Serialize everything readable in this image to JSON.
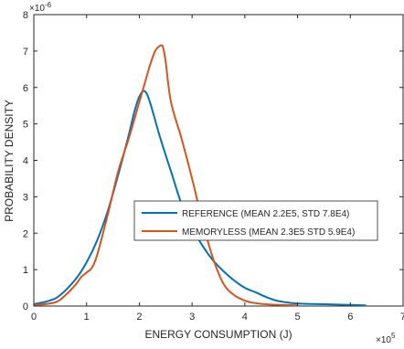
{
  "chart_data": {
    "type": "line",
    "xlabel": "ENERGY CONSUMPTION (J)",
    "ylabel": "PROBABILITY DENSITY",
    "xlim": [
      0,
      7
    ],
    "ylim": [
      0,
      8
    ],
    "x_ticks": [
      "0",
      "1",
      "2",
      "3",
      "4",
      "5",
      "6",
      "7"
    ],
    "y_ticks": [
      "0",
      "1",
      "2",
      "3",
      "4",
      "5",
      "6",
      "7",
      "8"
    ],
    "x_exponent_label": "×10",
    "x_exponent_power": "5",
    "y_exponent_label": "×10",
    "y_exponent_power": "-6",
    "grid": false,
    "legend_position": "center-right",
    "series": [
      {
        "name": "REFERENCE (MEAN 2.2E5, STD 7.8E4)",
        "color": "#0072BD",
        "x": [
          0,
          0.3,
          0.5,
          0.8,
          1.0,
          1.2,
          1.4,
          1.6,
          1.8,
          1.9,
          2.0,
          2.1,
          2.2,
          2.4,
          2.6,
          2.8,
          3.0,
          3.2,
          3.4,
          3.6,
          3.8,
          4.0,
          4.2,
          4.4,
          4.6,
          4.8,
          5.0,
          5.5,
          6.0,
          6.3
        ],
        "y": [
          0.05,
          0.15,
          0.3,
          0.75,
          1.2,
          1.8,
          2.6,
          3.6,
          4.7,
          5.3,
          5.75,
          5.9,
          5.6,
          4.6,
          3.7,
          2.8,
          2.15,
          1.65,
          1.25,
          0.95,
          0.7,
          0.5,
          0.38,
          0.25,
          0.15,
          0.1,
          0.07,
          0.05,
          0.03,
          0.02
        ]
      },
      {
        "name": "MEMORYLESS (MEAN 2.3E5 STD 5.9E4)",
        "color": "#D95319",
        "x": [
          0,
          0.4,
          0.6,
          0.8,
          0.9,
          1.0,
          1.1,
          1.2,
          1.4,
          1.6,
          1.8,
          2.0,
          2.1,
          2.2,
          2.3,
          2.4,
          2.45,
          2.5,
          2.6,
          2.8,
          3.0,
          3.2,
          3.4,
          3.6,
          3.8,
          4.0,
          4.2,
          4.5,
          5.0
        ],
        "y": [
          0.02,
          0.1,
          0.3,
          0.6,
          0.8,
          0.92,
          1.05,
          1.4,
          2.5,
          3.7,
          4.6,
          5.6,
          6.1,
          6.6,
          7.0,
          7.15,
          7.1,
          6.7,
          5.6,
          4.6,
          3.5,
          2.3,
          1.3,
          0.6,
          0.3,
          0.15,
          0.08,
          0.04,
          0.02
        ]
      }
    ]
  }
}
